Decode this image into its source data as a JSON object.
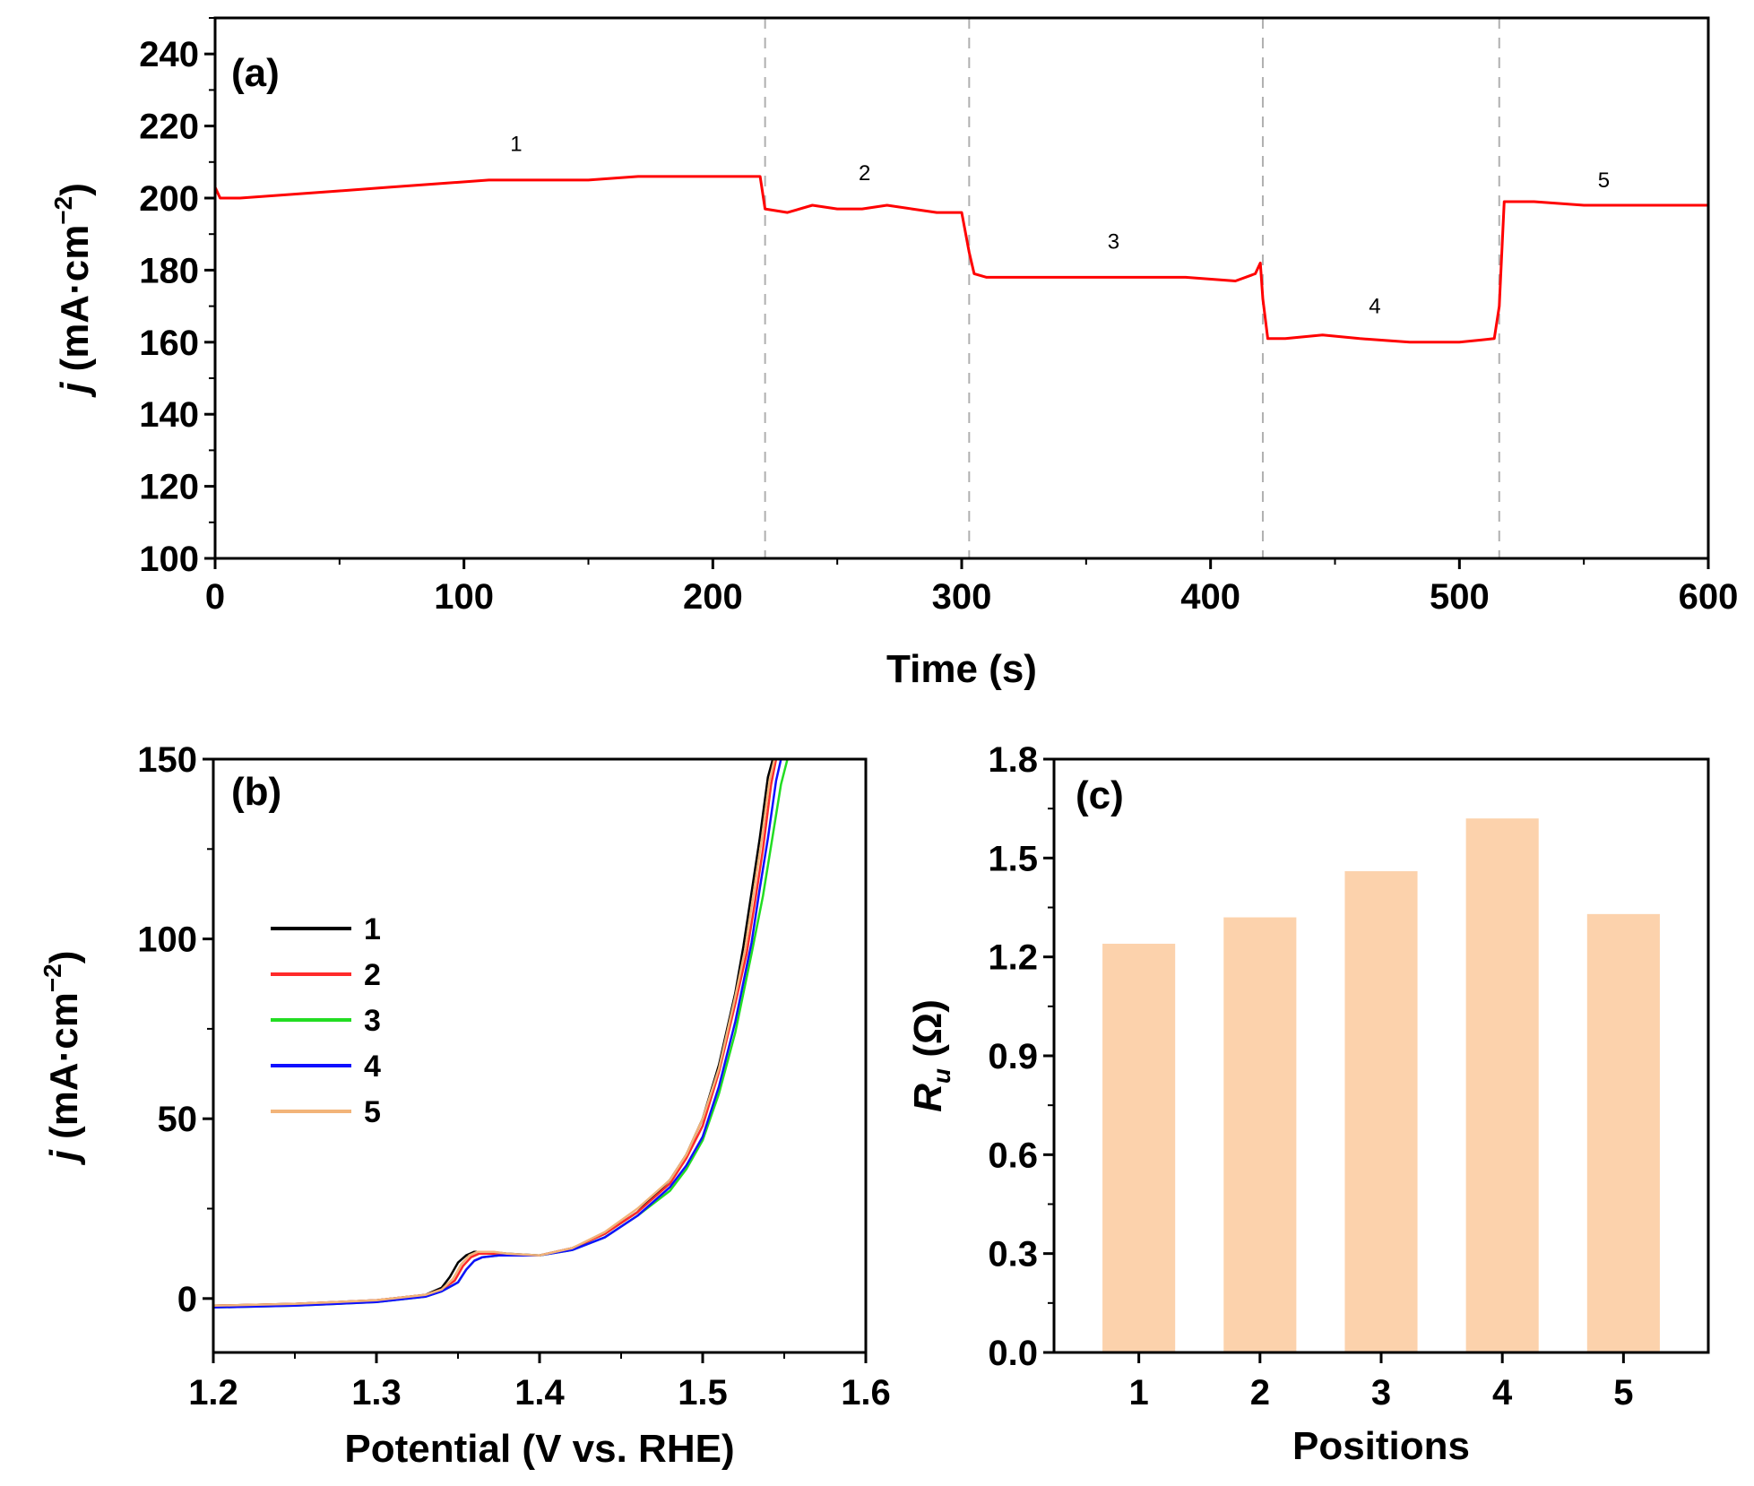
{
  "chart_data": [
    {
      "panel": "(a)",
      "type": "line",
      "xlabel": "Time (s)",
      "ylabel_var": "j",
      "ylabel_unit": "(mA·cm",
      "ylabel_exp": "−2",
      "ylabel_close": ")",
      "xlim": [
        0,
        600
      ],
      "ylim": [
        100,
        250
      ],
      "xticks": [
        "0",
        "100",
        "200",
        "300",
        "400",
        "500",
        "600"
      ],
      "yticks": [
        "100",
        "120",
        "140",
        "160",
        "180",
        "200",
        "220",
        "240"
      ],
      "line_color": "#ff0000",
      "divider_color": "#b0b0b0",
      "dividers_x": [
        221,
        303,
        421,
        516
      ],
      "series": [
        {
          "x": [
            0,
            2,
            10,
            30,
            50,
            70,
            90,
            110,
            130,
            150,
            170,
            190,
            210,
            219,
            221,
            230,
            240,
            250,
            260,
            270,
            280,
            290,
            300,
            303,
            305,
            310,
            330,
            350,
            370,
            390,
            410,
            418,
            420,
            421,
            423,
            430,
            445,
            460,
            480,
            500,
            514,
            516,
            518,
            530,
            550,
            570,
            600
          ],
          "y": [
            203,
            200,
            200,
            201,
            202,
            203,
            204,
            205,
            205,
            205,
            206,
            206,
            206,
            206,
            197,
            196,
            198,
            197,
            197,
            198,
            197,
            196,
            196,
            185,
            179,
            178,
            178,
            178,
            178,
            178,
            177,
            179,
            182,
            172,
            161,
            161,
            162,
            161,
            160,
            160,
            161,
            170,
            199,
            199,
            198,
            198,
            198
          ]
        }
      ],
      "segment_labels": [
        {
          "text": "1",
          "x": 121,
          "y": 213
        },
        {
          "text": "2",
          "x": 261,
          "y": 205
        },
        {
          "text": "3",
          "x": 361,
          "y": 186
        },
        {
          "text": "4",
          "x": 466,
          "y": 168
        },
        {
          "text": "5",
          "x": 558,
          "y": 203
        }
      ]
    },
    {
      "panel": "(b)",
      "type": "line",
      "xlabel": "Potential (V vs. RHE)",
      "ylabel_var": "j",
      "ylabel_unit": "(mA·cm",
      "ylabel_exp": "−2",
      "ylabel_close": ")",
      "xlim": [
        1.2,
        1.6
      ],
      "ylim": [
        -15,
        150
      ],
      "xticks": [
        "1.2",
        "1.3",
        "1.4",
        "1.5",
        "1.6"
      ],
      "yticks": [
        "0",
        "50",
        "100",
        "150"
      ],
      "series": [
        {
          "name": "1",
          "color": "#000000",
          "x": [
            1.2,
            1.25,
            1.3,
            1.33,
            1.34,
            1.345,
            1.35,
            1.355,
            1.36,
            1.37,
            1.38,
            1.4,
            1.42,
            1.44,
            1.46,
            1.48,
            1.49,
            1.5,
            1.51,
            1.52,
            1.525,
            1.53,
            1.535,
            1.54,
            1.543
          ],
          "y": [
            -2,
            -1.5,
            -0.5,
            1,
            3,
            6,
            10,
            12,
            13,
            13,
            12.5,
            12,
            14,
            18,
            24,
            33,
            40,
            50,
            65,
            85,
            98,
            113,
            128,
            145,
            150
          ]
        },
        {
          "name": "2",
          "color": "#ff2a2a",
          "x": [
            1.2,
            1.25,
            1.3,
            1.33,
            1.34,
            1.348,
            1.353,
            1.358,
            1.363,
            1.372,
            1.38,
            1.4,
            1.42,
            1.44,
            1.46,
            1.48,
            1.49,
            1.5,
            1.51,
            1.52,
            1.527,
            1.532,
            1.537,
            1.542,
            1.545
          ],
          "y": [
            -2,
            -1.5,
            -0.5,
            1,
            2.5,
            5,
            9,
            11.5,
            12.5,
            12.5,
            12,
            12,
            14,
            18,
            24,
            32,
            39,
            48,
            63,
            82,
            96,
            110,
            125,
            143,
            150
          ]
        },
        {
          "name": "3",
          "color": "#22dd22",
          "x": [
            1.2,
            1.25,
            1.3,
            1.33,
            1.34,
            1.35,
            1.355,
            1.36,
            1.365,
            1.375,
            1.385,
            1.4,
            1.42,
            1.44,
            1.46,
            1.48,
            1.49,
            1.5,
            1.51,
            1.52,
            1.53,
            1.537,
            1.542,
            1.548,
            1.552
          ],
          "y": [
            -2.5,
            -2,
            -1,
            0.5,
            2,
            4.5,
            8,
            10.5,
            11.5,
            12,
            12,
            12,
            13.5,
            17,
            23,
            30,
            36,
            44,
            57,
            74,
            96,
            112,
            126,
            143,
            150
          ]
        },
        {
          "name": "4",
          "color": "#1010ff",
          "x": [
            1.2,
            1.25,
            1.3,
            1.33,
            1.34,
            1.35,
            1.355,
            1.36,
            1.365,
            1.375,
            1.385,
            1.4,
            1.42,
            1.44,
            1.46,
            1.48,
            1.49,
            1.5,
            1.51,
            1.52,
            1.53,
            1.535,
            1.54,
            1.545,
            1.548
          ],
          "y": [
            -2.5,
            -2,
            -1,
            0.5,
            2,
            4.5,
            8,
            10.5,
            11.5,
            12,
            12,
            12,
            13.5,
            17,
            23,
            31,
            37,
            45,
            59,
            77,
            99,
            114,
            128,
            144,
            150
          ]
        },
        {
          "name": "5",
          "color": "#f2b479",
          "x": [
            1.2,
            1.25,
            1.3,
            1.33,
            1.34,
            1.347,
            1.352,
            1.357,
            1.362,
            1.372,
            1.38,
            1.4,
            1.42,
            1.44,
            1.46,
            1.48,
            1.49,
            1.5,
            1.51,
            1.52,
            1.526,
            1.531,
            1.536,
            1.541,
            1.544
          ],
          "y": [
            -2,
            -1.5,
            -0.5,
            1,
            2.5,
            5.5,
            9.5,
            12,
            13,
            13,
            12.5,
            12,
            14,
            18.5,
            25,
            33,
            40,
            50,
            64,
            84,
            97,
            112,
            127,
            144,
            150
          ]
        }
      ]
    },
    {
      "panel": "(c)",
      "type": "bar",
      "xlabel": "Positions",
      "ylabel_var": "R",
      "ylabel_sub": "u",
      "ylabel_unit": "(Ω)",
      "ylim": [
        0,
        1.8
      ],
      "yticks": [
        "0.0",
        "0.3",
        "0.6",
        "0.9",
        "1.2",
        "1.5",
        "1.8"
      ],
      "bar_color": "#fcd2ac",
      "categories": [
        "1",
        "2",
        "3",
        "4",
        "5"
      ],
      "values": [
        1.24,
        1.32,
        1.46,
        1.62,
        1.33
      ]
    }
  ]
}
